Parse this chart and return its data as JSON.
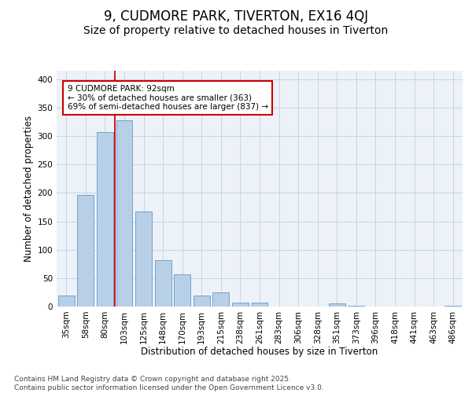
{
  "title_line1": "9, CUDMORE PARK, TIVERTON, EX16 4QJ",
  "title_line2": "Size of property relative to detached houses in Tiverton",
  "xlabel": "Distribution of detached houses by size in Tiverton",
  "ylabel": "Number of detached properties",
  "categories": [
    "35sqm",
    "58sqm",
    "80sqm",
    "103sqm",
    "125sqm",
    "148sqm",
    "170sqm",
    "193sqm",
    "215sqm",
    "238sqm",
    "261sqm",
    "283sqm",
    "306sqm",
    "328sqm",
    "351sqm",
    "373sqm",
    "396sqm",
    "418sqm",
    "441sqm",
    "463sqm",
    "486sqm"
  ],
  "values": [
    20,
    197,
    307,
    328,
    167,
    82,
    57,
    19,
    25,
    7,
    7,
    0,
    0,
    0,
    5,
    2,
    0,
    0,
    0,
    0,
    2
  ],
  "bar_color": "#b8cfe8",
  "bar_edge_color": "#6899c4",
  "vline_x": 2.5,
  "vline_color": "#cc0000",
  "annotation_text": "9 CUDMORE PARK: 92sqm\n← 30% of detached houses are smaller (363)\n69% of semi-detached houses are larger (837) →",
  "annotation_box_facecolor": "#ffffff",
  "annotation_box_edgecolor": "#cc0000",
  "ylim": [
    0,
    415
  ],
  "yticks": [
    0,
    50,
    100,
    150,
    200,
    250,
    300,
    350,
    400
  ],
  "grid_color": "#c5d5e8",
  "bg_color": "#edf2f8",
  "footer_text": "Contains HM Land Registry data © Crown copyright and database right 2025.\nContains public sector information licensed under the Open Government Licence v3.0.",
  "title_fontsize": 12,
  "subtitle_fontsize": 10,
  "axis_label_fontsize": 8.5,
  "tick_fontsize": 7.5,
  "annotation_fontsize": 7.5,
  "footer_fontsize": 6.5
}
